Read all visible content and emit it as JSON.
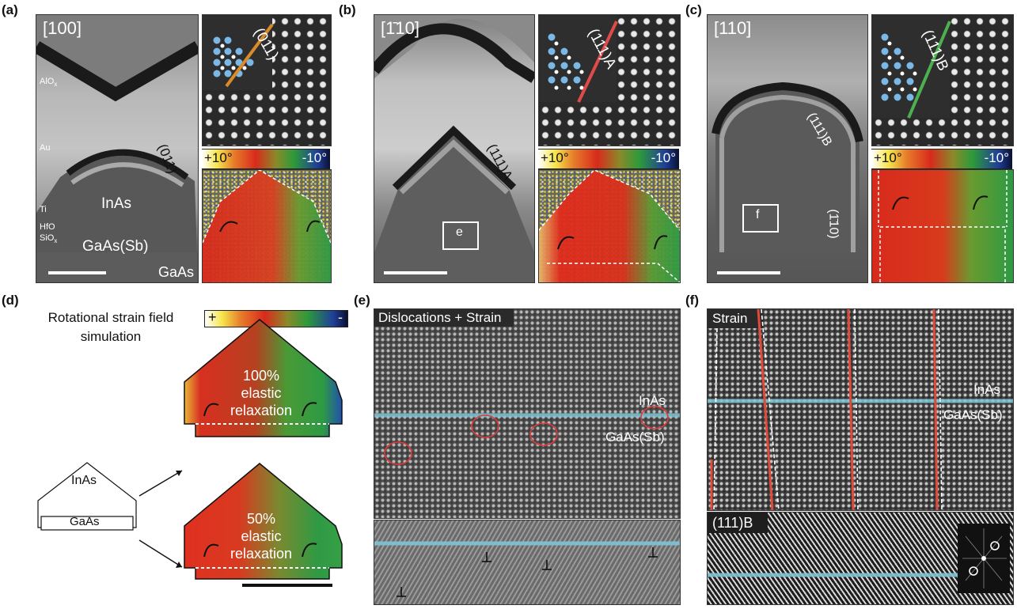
{
  "panels": {
    "a": {
      "label": "(a)",
      "direction": "[100]",
      "layers": [
        "AlO",
        "x",
        "Au",
        "Ti",
        "HfO",
        "SiO",
        "x"
      ],
      "facet": "(011)",
      "inset_plane": "(011)",
      "inas": "InAs",
      "gaassb": "GaAs(Sb)",
      "gaas": "GaAs",
      "cbar_plus": "+10°",
      "cbar_minus": "-10°"
    },
    "b": {
      "label": "(b)",
      "direction": "[1̅ 10]",
      "direction_display": "[1̄10]",
      "facet": "(111)A",
      "inset_plane": "(111)A",
      "box": "e",
      "cbar_plus": "+10°",
      "cbar_minus": "-10°"
    },
    "c": {
      "label": "(c)",
      "direction": "[110]",
      "facet1": "(111)B",
      "facet2": "(1̄10)",
      "inset_plane": "(111)B",
      "box": "f",
      "cbar_plus": "+10°",
      "cbar_minus": "-10°"
    },
    "d": {
      "label": "(d)",
      "title_line1": "Rotational strain field",
      "title_line2": "simulation",
      "cbar_plus": "+",
      "cbar_minus": "-",
      "inas": "InAs",
      "gaas": "GaAs",
      "sim1_line1": "100%",
      "sim1_line2": "elastic",
      "sim1_line3": "relaxation",
      "sim2_line1": "50%",
      "sim2_line2": "elastic",
      "sim2_line3": "relaxation"
    },
    "e": {
      "label": "(e)",
      "title": "Dislocations + Strain",
      "inas": "InAs",
      "gaassb": "GaAs(Sb)"
    },
    "f": {
      "label": "(f)",
      "title": "Strain",
      "inas": "InAs",
      "gaassb": "GaAs(Sb)",
      "fft_label": "(111)B"
    }
  },
  "colors": {
    "orange_line": "#d98a2a",
    "red_line": "#e04a4a",
    "green_line": "#4caf50",
    "cyan_line": "#7fc4d4",
    "circle": "#e03a3a",
    "atom_blue": "#7ab8e8"
  }
}
